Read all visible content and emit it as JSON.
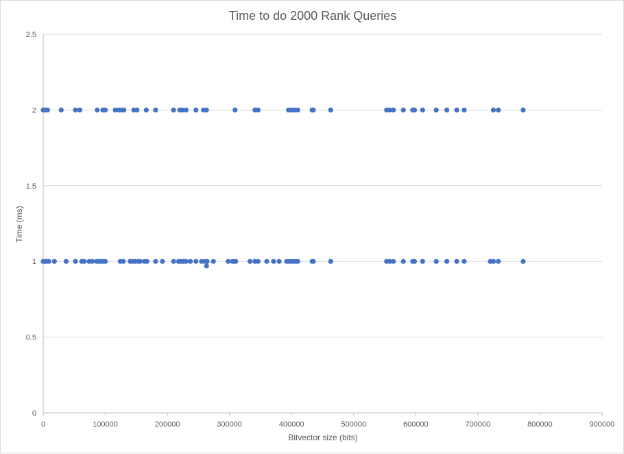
{
  "chart_data": {
    "type": "scatter",
    "title": "Time to do 2000 Rank Queries",
    "xlabel": "Bitvector size (bits)",
    "ylabel": "Time (ms)",
    "xlim": [
      0,
      900000
    ],
    "ylim": [
      0,
      2.5
    ],
    "xticks": [
      0,
      100000,
      200000,
      300000,
      400000,
      500000,
      600000,
      700000,
      800000,
      900000
    ],
    "yticks": [
      0,
      0.5,
      1,
      1.5,
      2,
      2.5
    ],
    "grid": "horizontal",
    "legend": "none",
    "marker_color": "#4472c4",
    "series": [
      {
        "points": [
          [
            0,
            2
          ],
          [
            3000,
            2
          ],
          [
            7000,
            2
          ],
          [
            29000,
            2
          ],
          [
            52000,
            2
          ],
          [
            59000,
            2
          ],
          [
            87000,
            2
          ],
          [
            96000,
            2
          ],
          [
            100000,
            2
          ],
          [
            116000,
            2
          ],
          [
            122000,
            2
          ],
          [
            127000,
            2
          ],
          [
            130000,
            2
          ],
          [
            146000,
            2
          ],
          [
            151000,
            2
          ],
          [
            166000,
            2
          ],
          [
            181000,
            2
          ],
          [
            210000,
            2
          ],
          [
            220000,
            2
          ],
          [
            224000,
            2
          ],
          [
            230000,
            2
          ],
          [
            246000,
            2
          ],
          [
            258000,
            2
          ],
          [
            263000,
            2
          ],
          [
            309000,
            2
          ],
          [
            341000,
            2
          ],
          [
            346000,
            2
          ],
          [
            395000,
            2
          ],
          [
            400000,
            2
          ],
          [
            405000,
            2
          ],
          [
            410000,
            2
          ],
          [
            433000,
            2
          ],
          [
            435000,
            2
          ],
          [
            463000,
            2
          ],
          [
            553000,
            2
          ],
          [
            558000,
            2
          ],
          [
            564000,
            2
          ],
          [
            580000,
            2
          ],
          [
            595000,
            2
          ],
          [
            598000,
            2
          ],
          [
            611000,
            2
          ],
          [
            633000,
            2
          ],
          [
            650000,
            2
          ],
          [
            666000,
            2
          ],
          [
            678000,
            2
          ],
          [
            725000,
            2
          ],
          [
            733000,
            2
          ],
          [
            773000,
            2
          ],
          [
            0,
            1
          ],
          [
            2000,
            1
          ],
          [
            5000,
            1
          ],
          [
            9000,
            1
          ],
          [
            18000,
            1
          ],
          [
            37000,
            1
          ],
          [
            52000,
            1
          ],
          [
            62000,
            1
          ],
          [
            66000,
            1
          ],
          [
            74000,
            1
          ],
          [
            79000,
            1
          ],
          [
            86000,
            1
          ],
          [
            90000,
            1
          ],
          [
            93000,
            1
          ],
          [
            97000,
            1
          ],
          [
            100000,
            1
          ],
          [
            124000,
            1
          ],
          [
            129000,
            1
          ],
          [
            140000,
            1
          ],
          [
            144000,
            1
          ],
          [
            148000,
            1
          ],
          [
            153000,
            1
          ],
          [
            156000,
            1
          ],
          [
            163000,
            1
          ],
          [
            167000,
            1
          ],
          [
            181000,
            1
          ],
          [
            192000,
            1
          ],
          [
            210000,
            1
          ],
          [
            218000,
            1
          ],
          [
            222000,
            1
          ],
          [
            226000,
            1
          ],
          [
            230000,
            1
          ],
          [
            237000,
            1
          ],
          [
            246000,
            1
          ],
          [
            255000,
            1
          ],
          [
            260000,
            1
          ],
          [
            264000,
            1
          ],
          [
            274000,
            1
          ],
          [
            298000,
            1
          ],
          [
            305000,
            1
          ],
          [
            308000,
            1
          ],
          [
            310000,
            1
          ],
          [
            333000,
            1
          ],
          [
            341000,
            1
          ],
          [
            346000,
            1
          ],
          [
            360000,
            1
          ],
          [
            371000,
            1
          ],
          [
            380000,
            1
          ],
          [
            392000,
            1
          ],
          [
            396000,
            1
          ],
          [
            400000,
            1
          ],
          [
            403000,
            1
          ],
          [
            407000,
            1
          ],
          [
            410000,
            1
          ],
          [
            433000,
            1
          ],
          [
            435000,
            1
          ],
          [
            463000,
            1
          ],
          [
            553000,
            1
          ],
          [
            558000,
            1
          ],
          [
            564000,
            1
          ],
          [
            580000,
            1
          ],
          [
            595000,
            1
          ],
          [
            598000,
            1
          ],
          [
            611000,
            1
          ],
          [
            633000,
            1
          ],
          [
            650000,
            1
          ],
          [
            666000,
            1
          ],
          [
            678000,
            1
          ],
          [
            720000,
            1
          ],
          [
            725000,
            1
          ],
          [
            733000,
            1
          ],
          [
            773000,
            1
          ],
          [
            263000,
            0.97
          ]
        ]
      }
    ]
  }
}
